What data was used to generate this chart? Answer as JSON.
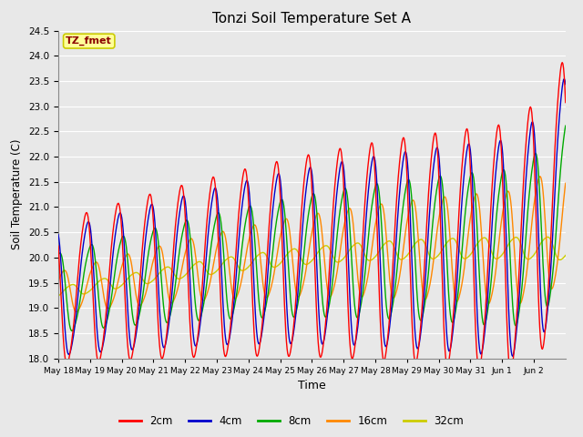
{
  "title": "Tonzi Soil Temperature Set A",
  "xlabel": "Time",
  "ylabel": "Soil Temperature (C)",
  "ylim": [
    18.0,
    24.5
  ],
  "annotation_text": "TZ_fmet",
  "annotation_color": "#8B0000",
  "annotation_bg": "#FFFF99",
  "annotation_edge": "#CCCC00",
  "line_colors": {
    "2cm": "#FF0000",
    "4cm": "#0000CC",
    "8cm": "#00AA00",
    "16cm": "#FF8800",
    "32cm": "#CCCC00"
  },
  "legend_labels": [
    "2cm",
    "4cm",
    "8cm",
    "16cm",
    "32cm"
  ],
  "background_color": "#E8E8E8",
  "grid_color": "#FFFFFF",
  "x_tick_labels": [
    "May 18",
    "May 19",
    "May 20",
    "May 21",
    "May 22",
    "May 23",
    "May 24",
    "May 25",
    "May 26",
    "May 27",
    "May 28",
    "May 29",
    "May 30",
    "May 31",
    "Jun 1",
    "Jun 2"
  ],
  "yticks": [
    18.0,
    18.5,
    19.0,
    19.5,
    20.0,
    20.5,
    21.0,
    21.5,
    22.0,
    22.5,
    23.0,
    23.5,
    24.0,
    24.5
  ],
  "n_days": 16,
  "pts_per_day": 48
}
